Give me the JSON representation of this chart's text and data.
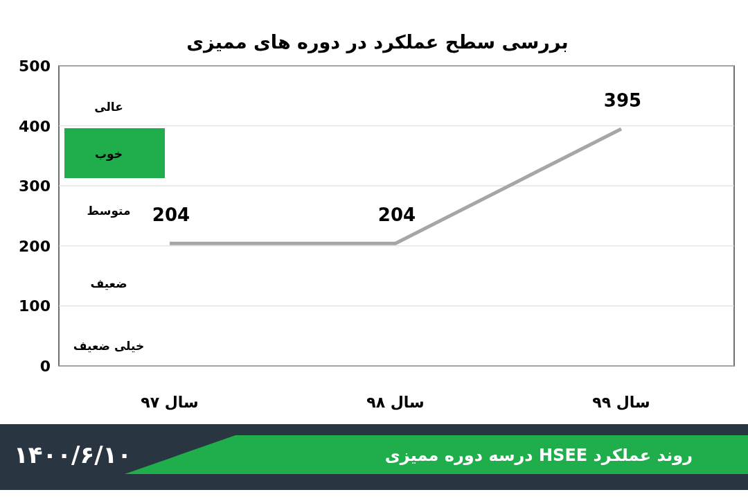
{
  "chart_data": {
    "type": "line",
    "title": "بررسی سطح عملکرد در دوره های ممیزی",
    "categories": [
      "سال ۹۷",
      "سال ۹۸",
      "سال ۹۹"
    ],
    "series": [
      {
        "color": "#a6a6a6",
        "values": [
          204,
          204,
          395
        ]
      }
    ],
    "ylim": [
      0,
      500
    ],
    "yticks": [
      0,
      100,
      200,
      300,
      400,
      500
    ],
    "grid": "y",
    "data_labels": true,
    "marker": "none",
    "line_style": "solid",
    "annotations": [
      "روند عملکرد HSEE درسه دوره ممیزی",
      "۱۴۰۰/۶/۱۰",
      "عالی",
      "خوب",
      "متوسط",
      "ضعیف",
      "خیلی ضعیف"
    ]
  }
}
